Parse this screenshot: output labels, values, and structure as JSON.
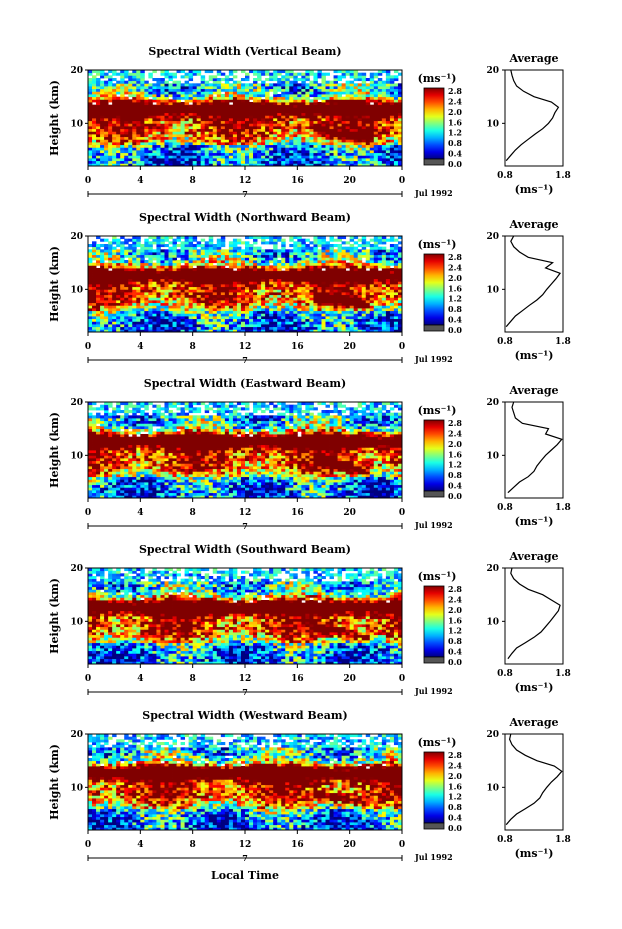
{
  "chart_data": {
    "type": "heatmap",
    "xlabel": "Local Time",
    "date_label": "Jul 1992",
    "day_label": "7",
    "x_ticks": [
      "0",
      "4",
      "8",
      "12",
      "16",
      "20",
      "0"
    ],
    "ylabel": "Height (km)",
    "y_ticks": [
      "20",
      "10"
    ],
    "xlim": [
      0,
      24
    ],
    "ylim": [
      2,
      20
    ],
    "colorbar": {
      "unit": "(ms⁻¹)",
      "ticks": [
        "2.8",
        "2.4",
        "2.0",
        "1.6",
        "1.2",
        "0.8",
        "0.4",
        "0.0"
      ],
      "range": [
        0,
        3.0
      ]
    },
    "profile": {
      "title": "Average",
      "x_ticks": [
        "0.8",
        "1.8"
      ],
      "xlabel": "(ms⁻¹)",
      "y_ticks": [
        "20",
        "10"
      ],
      "xlim": [
        0.8,
        1.8
      ]
    },
    "panels": [
      {
        "title": "Spectral Width (Vertical Beam)",
        "average_profile": {
          "height_km": [
            3,
            4,
            5,
            6,
            7,
            8,
            9,
            10,
            11,
            12,
            13,
            14,
            15,
            16,
            17,
            18,
            19,
            20
          ],
          "width_ms": [
            0.82,
            0.9,
            0.98,
            1.08,
            1.2,
            1.32,
            1.45,
            1.55,
            1.62,
            1.66,
            1.72,
            1.6,
            1.3,
            1.12,
            1.0,
            0.95,
            0.92,
            0.9
          ]
        }
      },
      {
        "title": "Spectral Width (Northward Beam)",
        "average_profile": {
          "height_km": [
            3,
            4,
            5,
            6,
            7,
            8,
            9,
            10,
            11,
            12,
            13,
            14,
            15,
            16,
            17,
            18,
            19,
            20
          ],
          "width_ms": [
            0.82,
            0.9,
            0.98,
            1.1,
            1.22,
            1.35,
            1.45,
            1.52,
            1.6,
            1.68,
            1.75,
            1.5,
            1.62,
            1.2,
            1.05,
            0.95,
            0.9,
            0.95
          ]
        }
      },
      {
        "title": "Spectral Width (Eastward Beam)",
        "average_profile": {
          "height_km": [
            3,
            4,
            5,
            6,
            7,
            8,
            9,
            10,
            11,
            12,
            13,
            14,
            15,
            16,
            17,
            18,
            19,
            20
          ],
          "width_ms": [
            0.85,
            0.95,
            1.05,
            1.2,
            1.3,
            1.35,
            1.42,
            1.5,
            1.6,
            1.7,
            1.78,
            1.5,
            1.55,
            1.1,
            0.98,
            0.95,
            0.92,
            0.95
          ]
        }
      },
      {
        "title": "Spectral Width (Southward Beam)",
        "average_profile": {
          "height_km": [
            3,
            4,
            5,
            6,
            7,
            8,
            9,
            10,
            11,
            12,
            13,
            14,
            15,
            16,
            17,
            18,
            19,
            20
          ],
          "width_ms": [
            0.85,
            0.92,
            1.0,
            1.15,
            1.3,
            1.42,
            1.5,
            1.58,
            1.65,
            1.72,
            1.75,
            1.6,
            1.45,
            1.2,
            1.05,
            0.95,
            0.9,
            0.92
          ]
        }
      },
      {
        "title": "Spectral Width (Westward Beam)",
        "average_profile": {
          "height_km": [
            3,
            4,
            5,
            6,
            7,
            8,
            9,
            10,
            11,
            12,
            13,
            14,
            15,
            16,
            17,
            18,
            19,
            20
          ],
          "width_ms": [
            0.82,
            0.9,
            1.0,
            1.15,
            1.3,
            1.4,
            1.45,
            1.52,
            1.6,
            1.7,
            1.78,
            1.65,
            1.35,
            1.15,
            1.0,
            0.92,
            0.88,
            0.9
          ]
        }
      }
    ]
  }
}
